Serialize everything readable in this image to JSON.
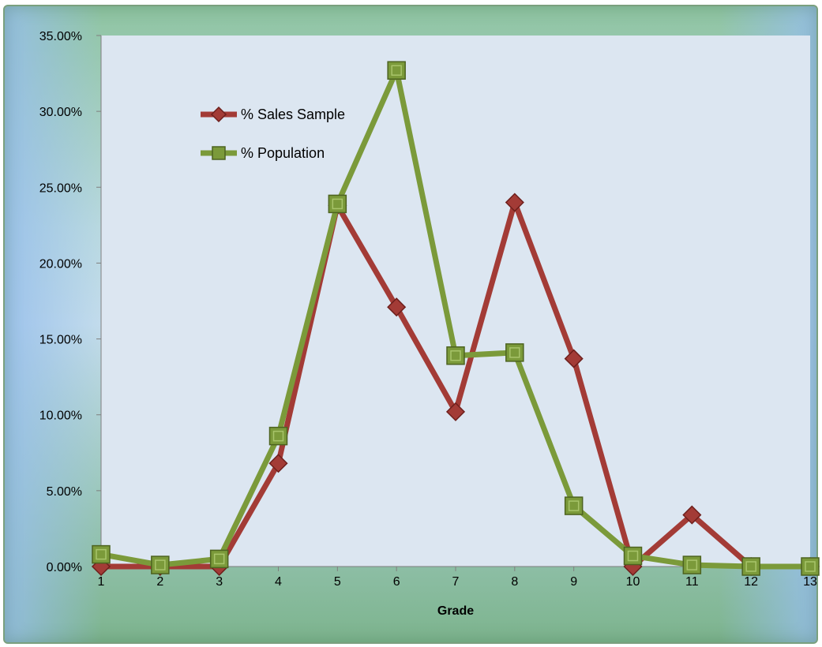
{
  "chart_data": {
    "type": "line",
    "xlabel": "Grade",
    "ylabel": "",
    "x": [
      1,
      2,
      3,
      4,
      5,
      6,
      7,
      8,
      9,
      10,
      11,
      12,
      13
    ],
    "x_tick_labels": [
      "1",
      "2",
      "3",
      "4",
      "5",
      "6",
      "7",
      "8",
      "9",
      "10",
      "11",
      "12",
      "13"
    ],
    "ylim": [
      0,
      0.35
    ],
    "y_ticks": [
      0,
      0.05,
      0.1,
      0.15,
      0.2,
      0.25,
      0.3,
      0.35
    ],
    "y_tick_labels": [
      "0.00%",
      "5.00%",
      "10.00%",
      "15.00%",
      "20.00%",
      "25.00%",
      "30.00%",
      "35.00%"
    ],
    "grid": false,
    "legend_position": "upper-left inside plot",
    "series": [
      {
        "name": "% Sales Sample",
        "color": "#a33b36",
        "marker": "diamond",
        "values": [
          0.0,
          0.0,
          0.0,
          0.068,
          0.238,
          0.171,
          0.102,
          0.24,
          0.137,
          0.0,
          0.034,
          0.0,
          0.0
        ]
      },
      {
        "name": "% Population",
        "color": "#7b9a3a",
        "marker": "square",
        "values": [
          0.008,
          0.001,
          0.005,
          0.086,
          0.239,
          0.327,
          0.139,
          0.141,
          0.04,
          0.007,
          0.001,
          0.0,
          0.0
        ]
      }
    ]
  }
}
